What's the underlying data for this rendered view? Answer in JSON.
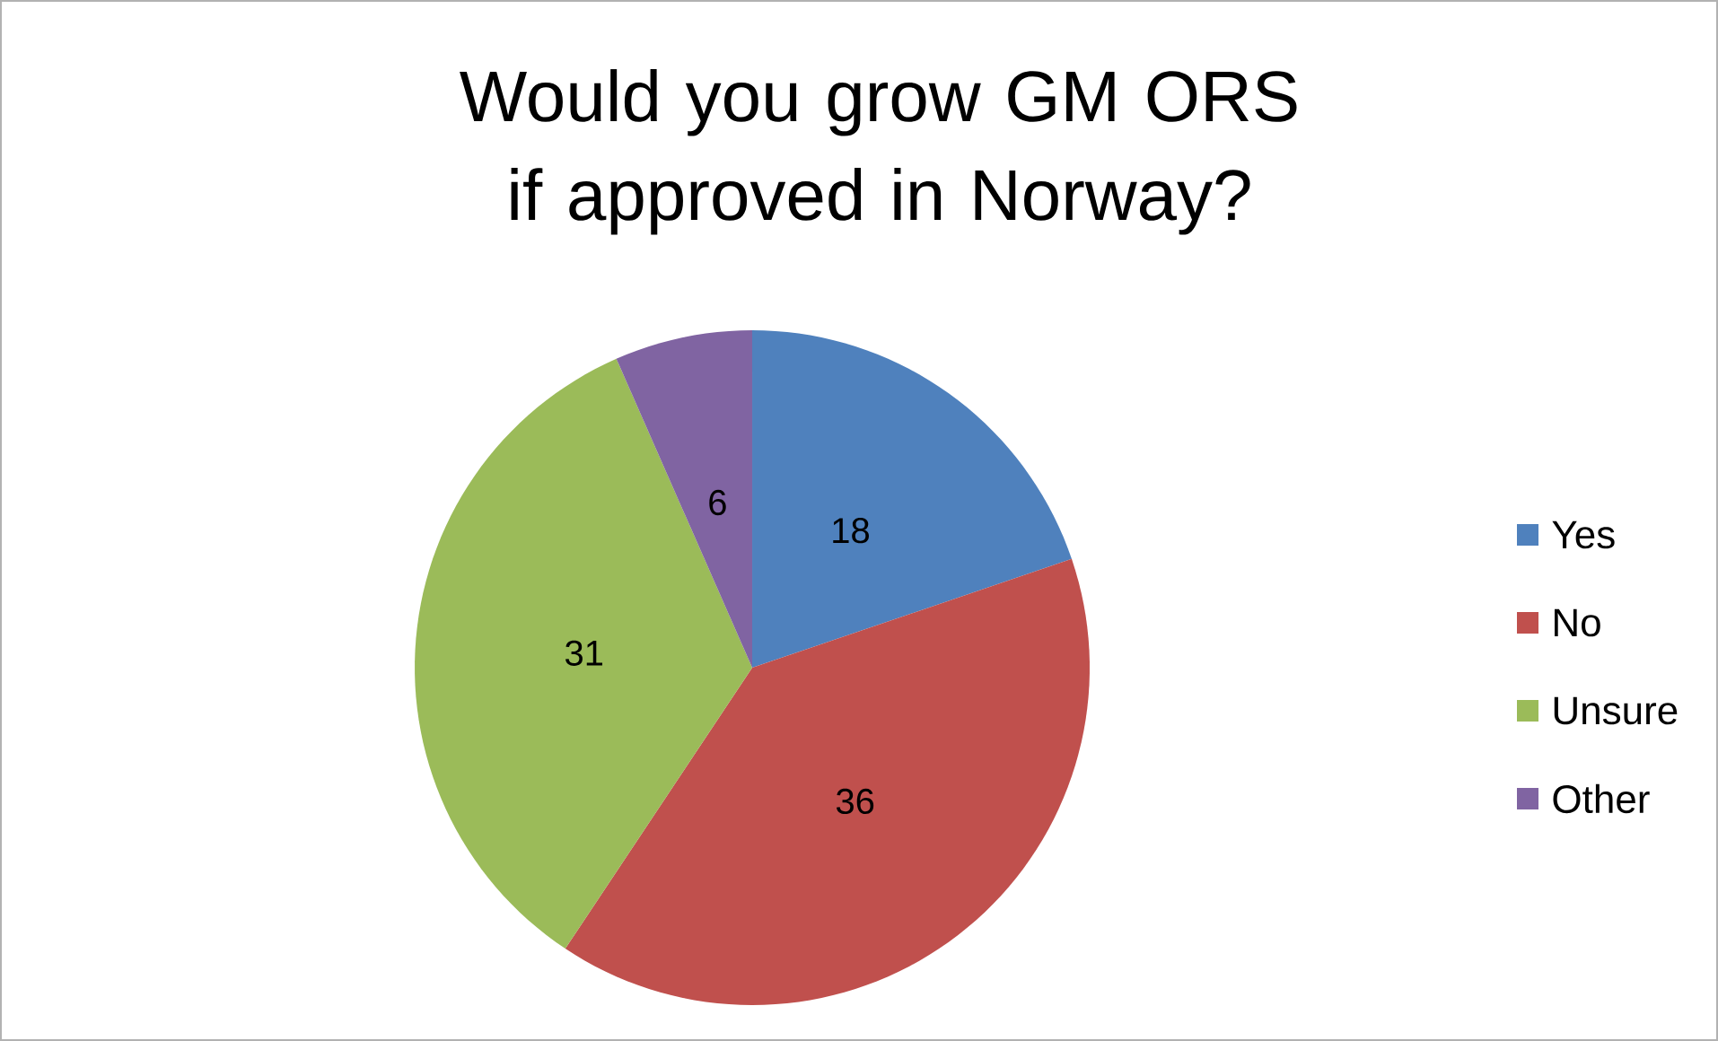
{
  "chart_data": {
    "type": "pie",
    "title": "Would you grow GM ORS if approved in Norway?",
    "categories": [
      "Yes",
      "No",
      "Unsure",
      "Other"
    ],
    "values": [
      18,
      36,
      31,
      6
    ],
    "colors": [
      "#4f81bd",
      "#c0504d",
      "#9bbb59",
      "#8064a2"
    ],
    "data_labels": true,
    "legend": "right"
  }
}
